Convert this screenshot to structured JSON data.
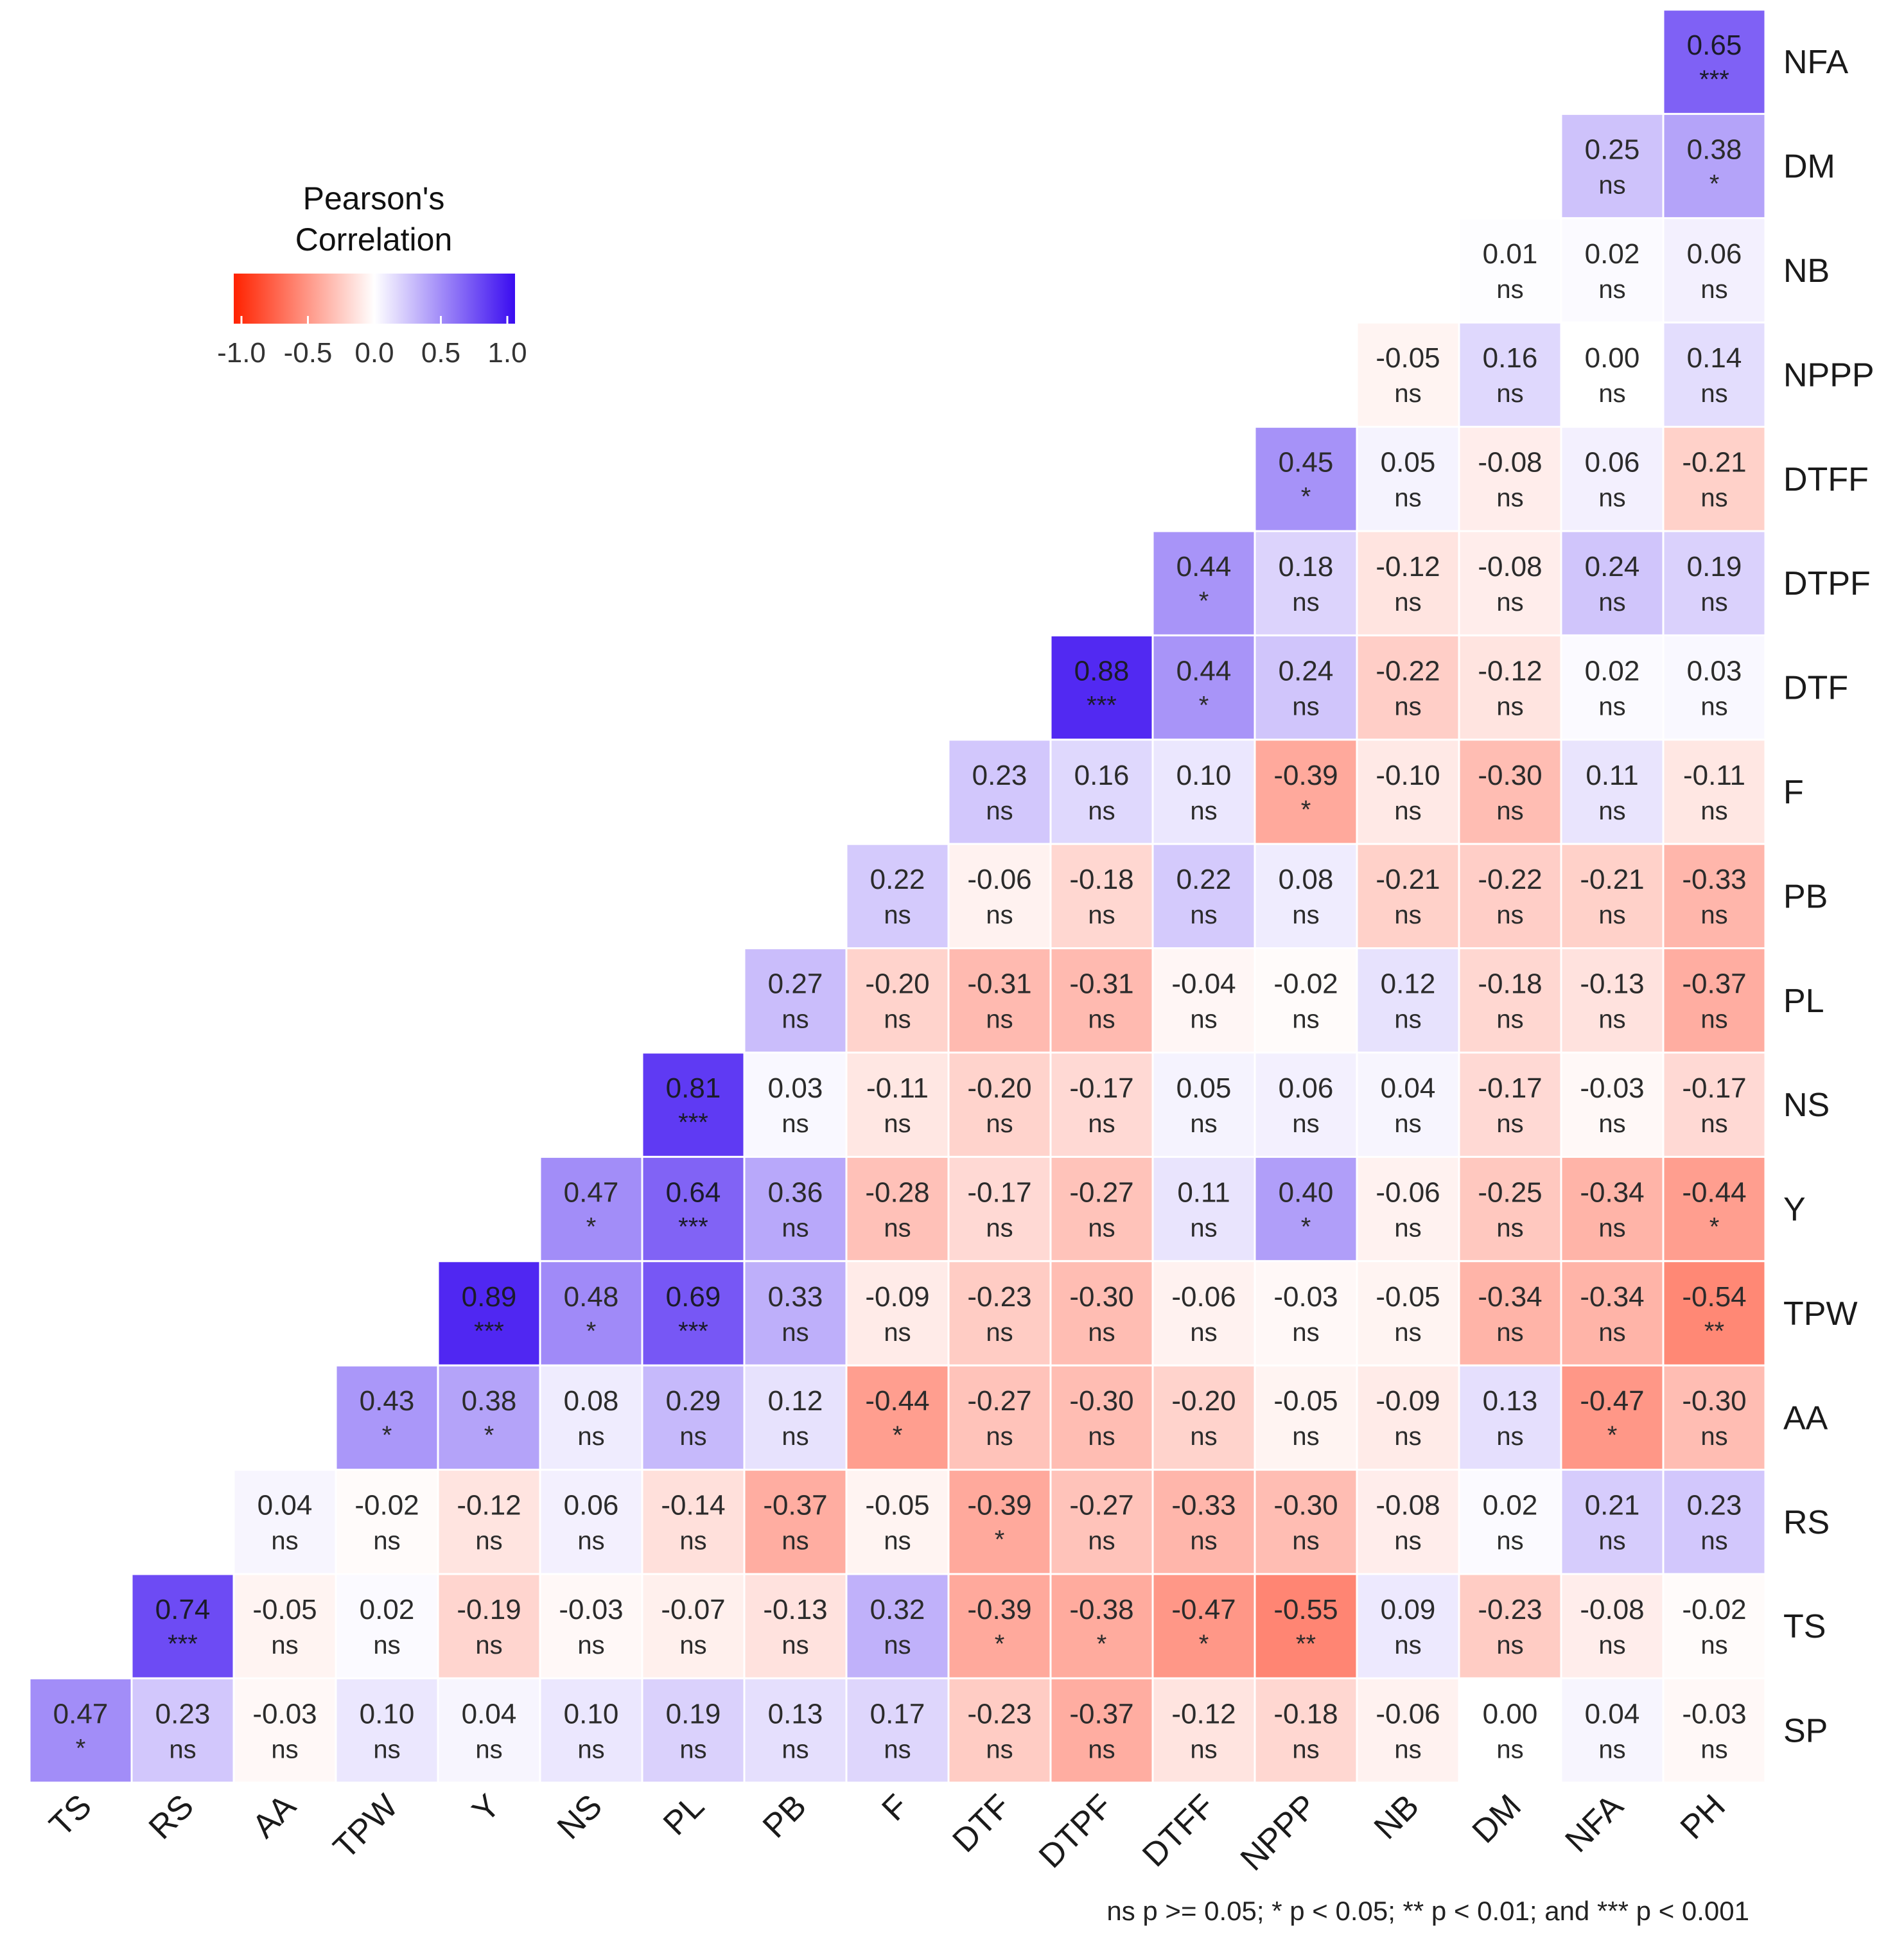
{
  "chart_data": {
    "type": "heatmap",
    "variables": [
      "TS",
      "RS",
      "AA",
      "TPW",
      "Y",
      "NS",
      "PL",
      "PB",
      "F",
      "DTF",
      "DTPF",
      "DTFF",
      "NPPP",
      "NB",
      "DM",
      "NFA",
      "PH"
    ],
    "columns": [
      "TS",
      "RS",
      "AA",
      "TPW",
      "Y",
      "NS",
      "PL",
      "PB",
      "F",
      "DTF",
      "DTPF",
      "DTFF",
      "NPPP",
      "NB",
      "DM",
      "NFA",
      "PH"
    ],
    "rows": [
      "NFA",
      "DM",
      "NB",
      "NPPP",
      "DTFF",
      "DTPF",
      "DTF",
      "F",
      "PB",
      "PL",
      "NS",
      "Y",
      "TPW",
      "AA",
      "RS",
      "TS",
      "SP"
    ],
    "values": [
      [
        0.65
      ],
      [
        0.25,
        0.38
      ],
      [
        0.01,
        0.02,
        0.06
      ],
      [
        -0.05,
        0.16,
        0.0,
        0.14
      ],
      [
        0.45,
        0.05,
        -0.08,
        0.06,
        -0.21
      ],
      [
        0.44,
        0.18,
        -0.12,
        -0.08,
        0.24,
        0.19
      ],
      [
        0.88,
        0.44,
        0.24,
        -0.22,
        -0.12,
        0.02,
        0.03
      ],
      [
        0.23,
        0.16,
        0.1,
        -0.39,
        -0.1,
        -0.3,
        0.11,
        -0.11
      ],
      [
        0.22,
        -0.06,
        -0.18,
        0.22,
        0.08,
        -0.21,
        -0.22,
        -0.21,
        -0.33
      ],
      [
        0.27,
        -0.2,
        -0.31,
        -0.31,
        -0.04,
        -0.02,
        0.12,
        -0.18,
        -0.13,
        -0.37
      ],
      [
        0.81,
        0.03,
        -0.11,
        -0.2,
        -0.17,
        0.05,
        0.06,
        0.04,
        -0.17,
        -0.03,
        -0.17
      ],
      [
        0.47,
        0.64,
        0.36,
        -0.28,
        -0.17,
        -0.27,
        0.11,
        0.4,
        -0.06,
        -0.25,
        -0.34,
        -0.44
      ],
      [
        0.89,
        0.48,
        0.69,
        0.33,
        -0.09,
        -0.23,
        -0.3,
        -0.06,
        -0.03,
        -0.05,
        -0.34,
        -0.34,
        -0.54
      ],
      [
        0.43,
        0.38,
        0.08,
        0.29,
        0.12,
        -0.44,
        -0.27,
        -0.3,
        -0.2,
        -0.05,
        -0.09,
        0.13,
        -0.47,
        -0.3
      ],
      [
        0.04,
        -0.02,
        -0.12,
        0.06,
        -0.14,
        -0.37,
        -0.05,
        -0.39,
        -0.27,
        -0.33,
        -0.3,
        -0.08,
        0.02,
        0.21,
        0.23
      ],
      [
        0.74,
        -0.05,
        0.02,
        -0.19,
        -0.03,
        -0.07,
        -0.13,
        0.32,
        -0.39,
        -0.38,
        -0.47,
        -0.55,
        0.09,
        -0.23,
        -0.08,
        -0.02
      ],
      [
        0.47,
        0.23,
        -0.03,
        0.1,
        0.04,
        0.1,
        0.19,
        0.13,
        0.17,
        -0.23,
        -0.37,
        -0.12,
        -0.18,
        -0.06,
        0.0,
        0.04,
        -0.03
      ]
    ],
    "significance": [
      [
        "***"
      ],
      [
        "ns",
        "*"
      ],
      [
        "ns",
        "ns",
        "ns"
      ],
      [
        "ns",
        "ns",
        "ns",
        "ns"
      ],
      [
        "*",
        "ns",
        "ns",
        "ns",
        "ns"
      ],
      [
        "*",
        "ns",
        "ns",
        "ns",
        "ns",
        "ns"
      ],
      [
        "***",
        "*",
        "ns",
        "ns",
        "ns",
        "ns",
        "ns"
      ],
      [
        "ns",
        "ns",
        "ns",
        "*",
        "ns",
        "ns",
        "ns",
        "ns"
      ],
      [
        "ns",
        "ns",
        "ns",
        "ns",
        "ns",
        "ns",
        "ns",
        "ns",
        "ns"
      ],
      [
        "ns",
        "ns",
        "ns",
        "ns",
        "ns",
        "ns",
        "ns",
        "ns",
        "ns",
        "ns"
      ],
      [
        "***",
        "ns",
        "ns",
        "ns",
        "ns",
        "ns",
        "ns",
        "ns",
        "ns",
        "ns",
        "ns"
      ],
      [
        "*",
        "***",
        "ns",
        "ns",
        "ns",
        "ns",
        "ns",
        "*",
        "ns",
        "ns",
        "ns",
        "*"
      ],
      [
        "***",
        "*",
        "***",
        "ns",
        "ns",
        "ns",
        "ns",
        "ns",
        "ns",
        "ns",
        "ns",
        "ns",
        "**"
      ],
      [
        "*",
        "*",
        "ns",
        "ns",
        "ns",
        "*",
        "ns",
        "ns",
        "ns",
        "ns",
        "ns",
        "ns",
        "*",
        "ns"
      ],
      [
        "ns",
        "ns",
        "ns",
        "ns",
        "ns",
        "ns",
        "ns",
        "*",
        "ns",
        "ns",
        "ns",
        "ns",
        "ns",
        "ns",
        "ns"
      ],
      [
        "***",
        "ns",
        "ns",
        "ns",
        "ns",
        "ns",
        "ns",
        "ns",
        "*",
        "*",
        "*",
        "**",
        "ns",
        "ns",
        "ns",
        "ns"
      ],
      [
        "*",
        "ns",
        "ns",
        "ns",
        "ns",
        "ns",
        "ns",
        "ns",
        "ns",
        "ns",
        "ns",
        "ns",
        "ns",
        "ns",
        "ns",
        "ns",
        "ns"
      ]
    ],
    "legend": {
      "title_line1": "Pearson's",
      "title_line2": "Correlation",
      "ticks": [
        "-1.0",
        "-0.5",
        "0.0",
        "0.5",
        "1.0"
      ],
      "range": [
        -1.0,
        1.0
      ],
      "placement": "top-left"
    },
    "colors": {
      "low": "#ff2200",
      "mid": "#ffffff",
      "high": "#3a0cf0"
    },
    "caption": "ns p >= 0.05; * p < 0.05; ** p < 0.01; and *** p < 0.001"
  }
}
